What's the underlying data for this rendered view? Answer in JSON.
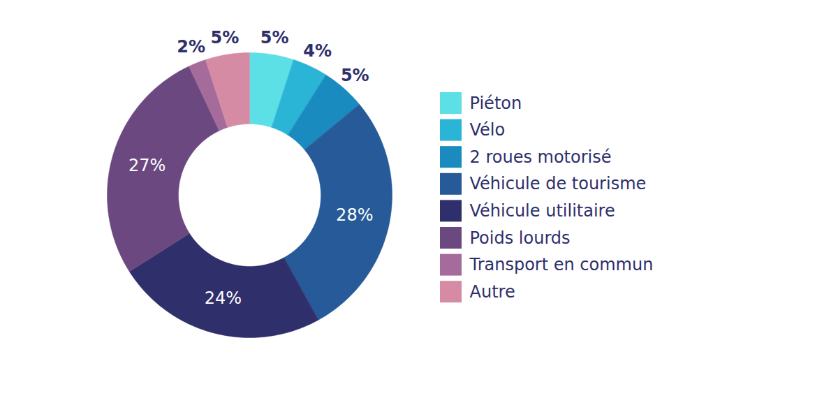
{
  "chart_data": {
    "type": "donut",
    "categories": [
      "Piéton",
      "Vélo",
      "2 roues motorisé",
      "Véhicule de tourisme",
      "Véhicule utilitaire",
      "Poids lourds",
      "Transport en commun",
      "Autre"
    ],
    "values": [
      5,
      4,
      5,
      28,
      24,
      27,
      2,
      5
    ],
    "value_labels": [
      "5%",
      "4%",
      "5%",
      "28%",
      "24%",
      "27%",
      "2%",
      "5%"
    ],
    "colors": [
      "#5ce0e6",
      "#2ab5d6",
      "#1a8bbf",
      "#275a99",
      "#2e2f6b",
      "#6b4880",
      "#a46b9b",
      "#d68ba5"
    ],
    "data_labels": true,
    "legend": "right"
  }
}
